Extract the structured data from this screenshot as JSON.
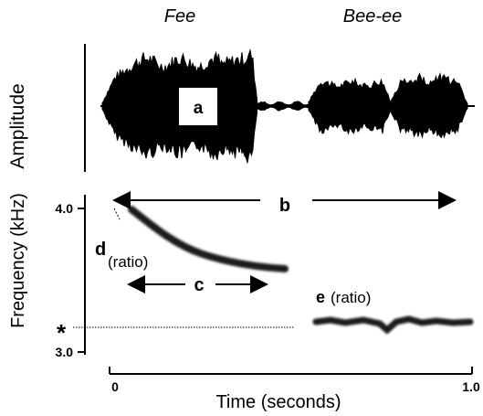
{
  "syllables": {
    "fee": "Fee",
    "bee": "Bee-ee"
  },
  "amplitude_label": "Amplitude",
  "frequency_label": "Frequency (kHz)",
  "y_ticks": {
    "top": "4.0",
    "bottom": "3.0"
  },
  "x_ticks": {
    "start": "0",
    "end": "1.0"
  },
  "x_label": "Time (seconds)",
  "annotations": {
    "a": "a",
    "b": "b",
    "c": "c",
    "d": "d",
    "d_ratio": "(ratio)",
    "e": "e",
    "e_ratio": "(ratio)",
    "asterisk": "*"
  },
  "colors": {
    "ink": "#000000",
    "trace": "#1a1a1a"
  }
}
